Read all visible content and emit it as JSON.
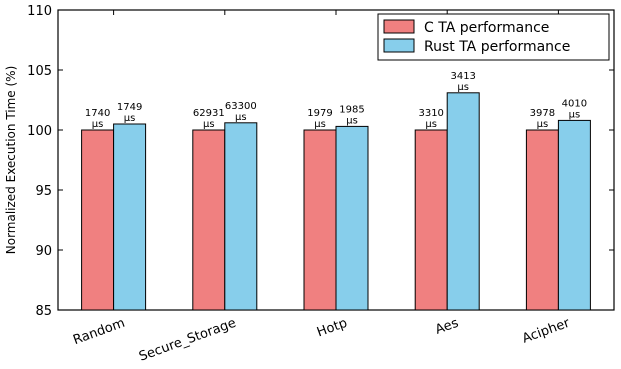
{
  "chart_data": {
    "type": "bar",
    "ylabel": "Normalized Execution Time (%)",
    "xlabel": "",
    "ylim": [
      85,
      110
    ],
    "yticks": [
      85,
      90,
      95,
      100,
      105,
      110
    ],
    "categories": [
      "Random",
      "Secure_Storage",
      "Hotp",
      "Aes",
      "Acipher"
    ],
    "series": [
      {
        "name": "C TA performance",
        "color": "#f08080",
        "values": [
          100,
          100,
          100,
          100,
          100
        ],
        "labels": [
          "1740",
          "62931",
          "1979",
          "3310",
          "3978"
        ]
      },
      {
        "name": "Rust TA performance",
        "color": "#87ceeb",
        "values": [
          100.5,
          100.6,
          100.3,
          103.1,
          100.8
        ],
        "labels": [
          "1749",
          "63300",
          "1985",
          "3413",
          "4010"
        ]
      }
    ],
    "unit": "μs",
    "legend_position": "top-right",
    "grid": false
  }
}
